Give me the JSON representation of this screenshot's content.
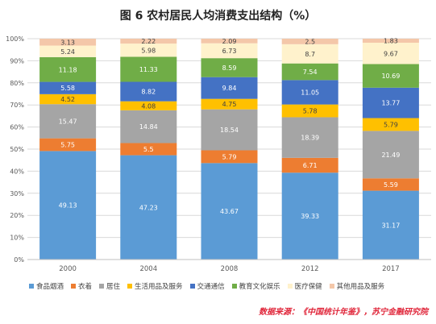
{
  "chart_data": {
    "type": "bar",
    "stacked": true,
    "title": "图 6    农村居民人均消费支出结构（%）",
    "categories": [
      "2000",
      "2004",
      "2008",
      "2012",
      "2017"
    ],
    "ylim": [
      0,
      100
    ],
    "yticks": [
      "0%",
      "10%",
      "20%",
      "30%",
      "40%",
      "50%",
      "60%",
      "70%",
      "80%",
      "90%",
      "100%"
    ],
    "grid": true,
    "legend_position": "bottom",
    "series": [
      {
        "name": "食品烟酒",
        "color": "#5b9bd5",
        "values": [
          49.13,
          47.23,
          43.67,
          39.33,
          31.17
        ]
      },
      {
        "name": "衣着",
        "color": "#ed7d31",
        "values": [
          5.75,
          5.5,
          5.79,
          6.71,
          5.59
        ]
      },
      {
        "name": "居住",
        "color": "#a5a5a5",
        "values": [
          15.47,
          14.84,
          18.54,
          18.39,
          21.49
        ]
      },
      {
        "name": "生活用品及服务",
        "color": "#ffc000",
        "values": [
          4.52,
          4.08,
          4.75,
          5.78,
          5.79
        ]
      },
      {
        "name": "交通通信",
        "color": "#4472c4",
        "values": [
          5.58,
          8.82,
          9.84,
          11.05,
          13.77
        ]
      },
      {
        "name": "教育文化娱乐",
        "color": "#70ad47",
        "values": [
          11.18,
          11.33,
          8.59,
          7.54,
          10.69
        ]
      },
      {
        "name": "医疗保健",
        "color": "#fff2cc",
        "values": [
          5.24,
          5.98,
          6.73,
          8.7,
          9.67
        ]
      },
      {
        "name": "其他用品及服务",
        "color": "#f4c7a9",
        "values": [
          3.13,
          2.22,
          2.09,
          2.5,
          1.83
        ]
      }
    ],
    "axis_color": "#d9d9d9",
    "label_color_dark_bg": "#ffffff",
    "label_color_light_bg": "#404040"
  },
  "source_note": "数据来源：《中国统计年鉴》，苏宁金融研究院"
}
